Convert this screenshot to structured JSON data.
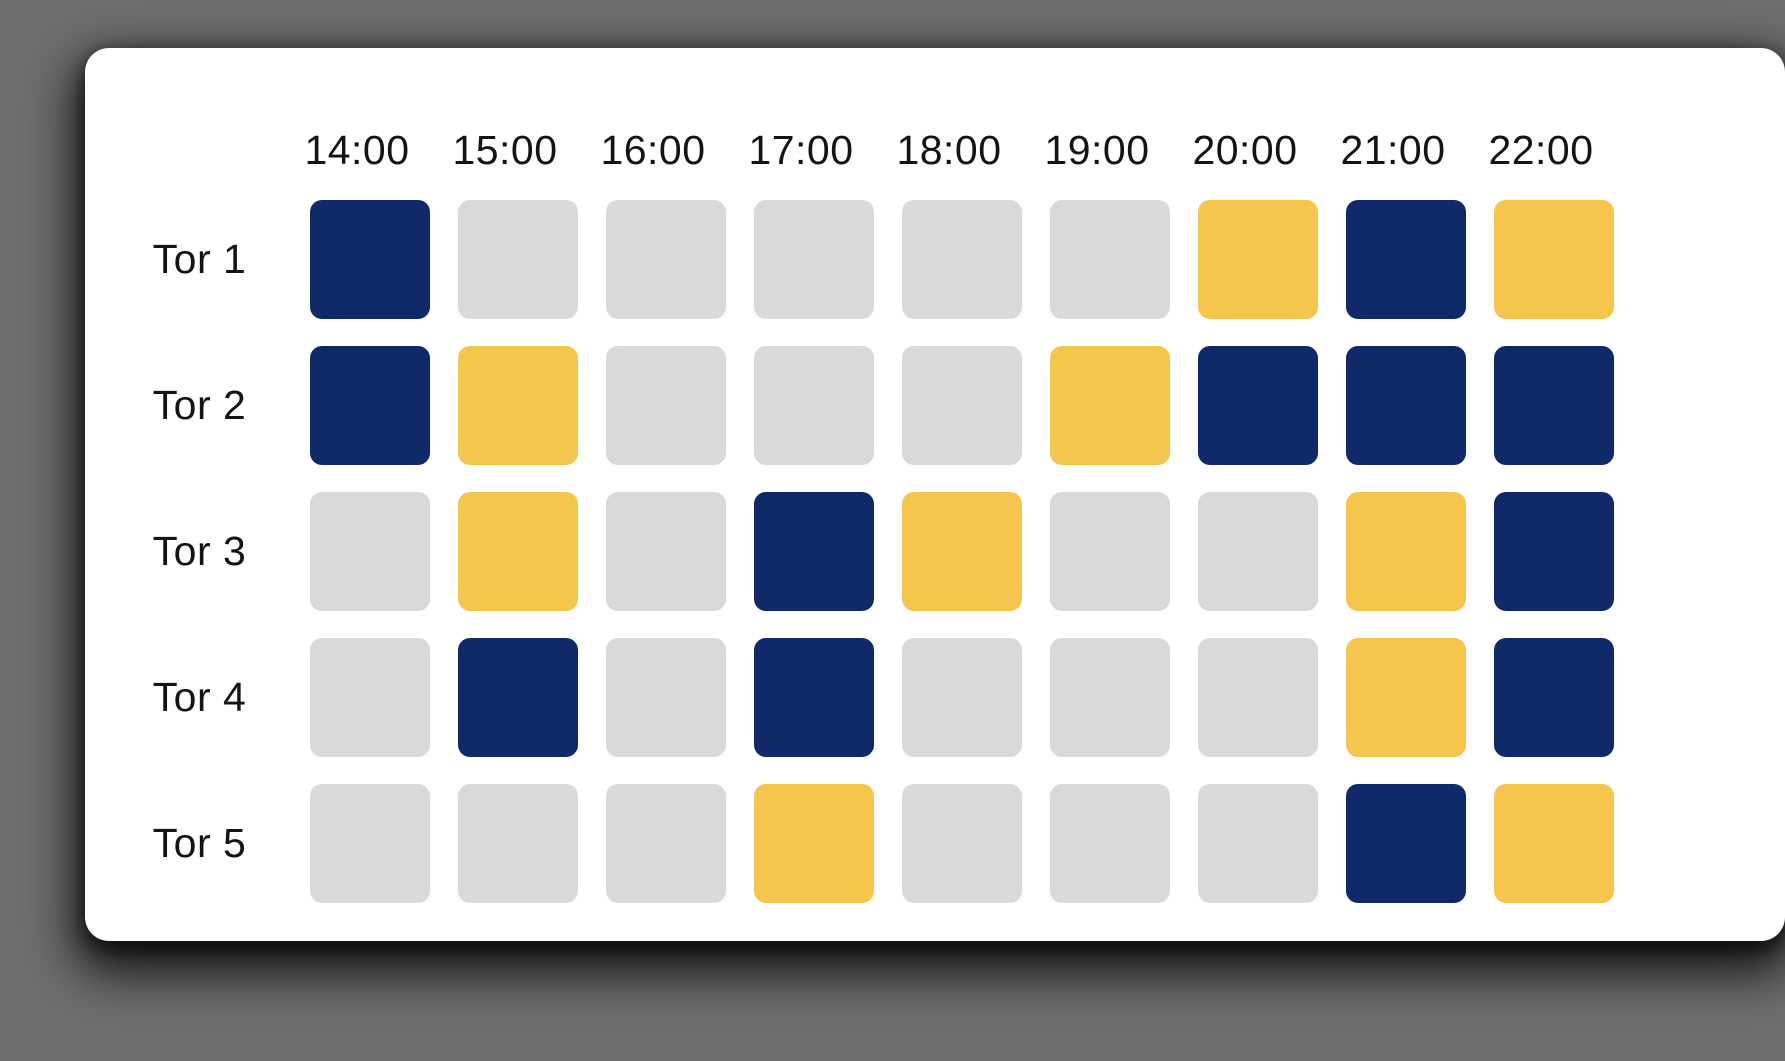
{
  "page": {
    "background_color": "#6e6e6e"
  },
  "card": {
    "background_color": "#ffffff"
  },
  "schedule": {
    "times": [
      "14:00",
      "15:00",
      "16:00",
      "17:00",
      "18:00",
      "19:00",
      "20:00",
      "21:00",
      "22:00"
    ],
    "status_colors": {
      "navy": "#102968",
      "yellow": "#f5c54d",
      "gray": "#d9d9d9"
    },
    "rows": [
      {
        "label": "Tor 1",
        "cells": [
          "navy",
          "gray",
          "gray",
          "gray",
          "gray",
          "gray",
          "yellow",
          "navy",
          "yellow"
        ]
      },
      {
        "label": "Tor 2",
        "cells": [
          "navy",
          "yellow",
          "gray",
          "gray",
          "gray",
          "yellow",
          "navy",
          "navy",
          "navy"
        ]
      },
      {
        "label": "Tor 3",
        "cells": [
          "gray",
          "yellow",
          "gray",
          "navy",
          "yellow",
          "gray",
          "gray",
          "yellow",
          "navy"
        ]
      },
      {
        "label": "Tor 4",
        "cells": [
          "gray",
          "navy",
          "gray",
          "navy",
          "gray",
          "gray",
          "gray",
          "yellow",
          "navy"
        ]
      },
      {
        "label": "Tor 5",
        "cells": [
          "gray",
          "gray",
          "gray",
          "yellow",
          "gray",
          "gray",
          "gray",
          "navy",
          "yellow"
        ]
      }
    ]
  }
}
